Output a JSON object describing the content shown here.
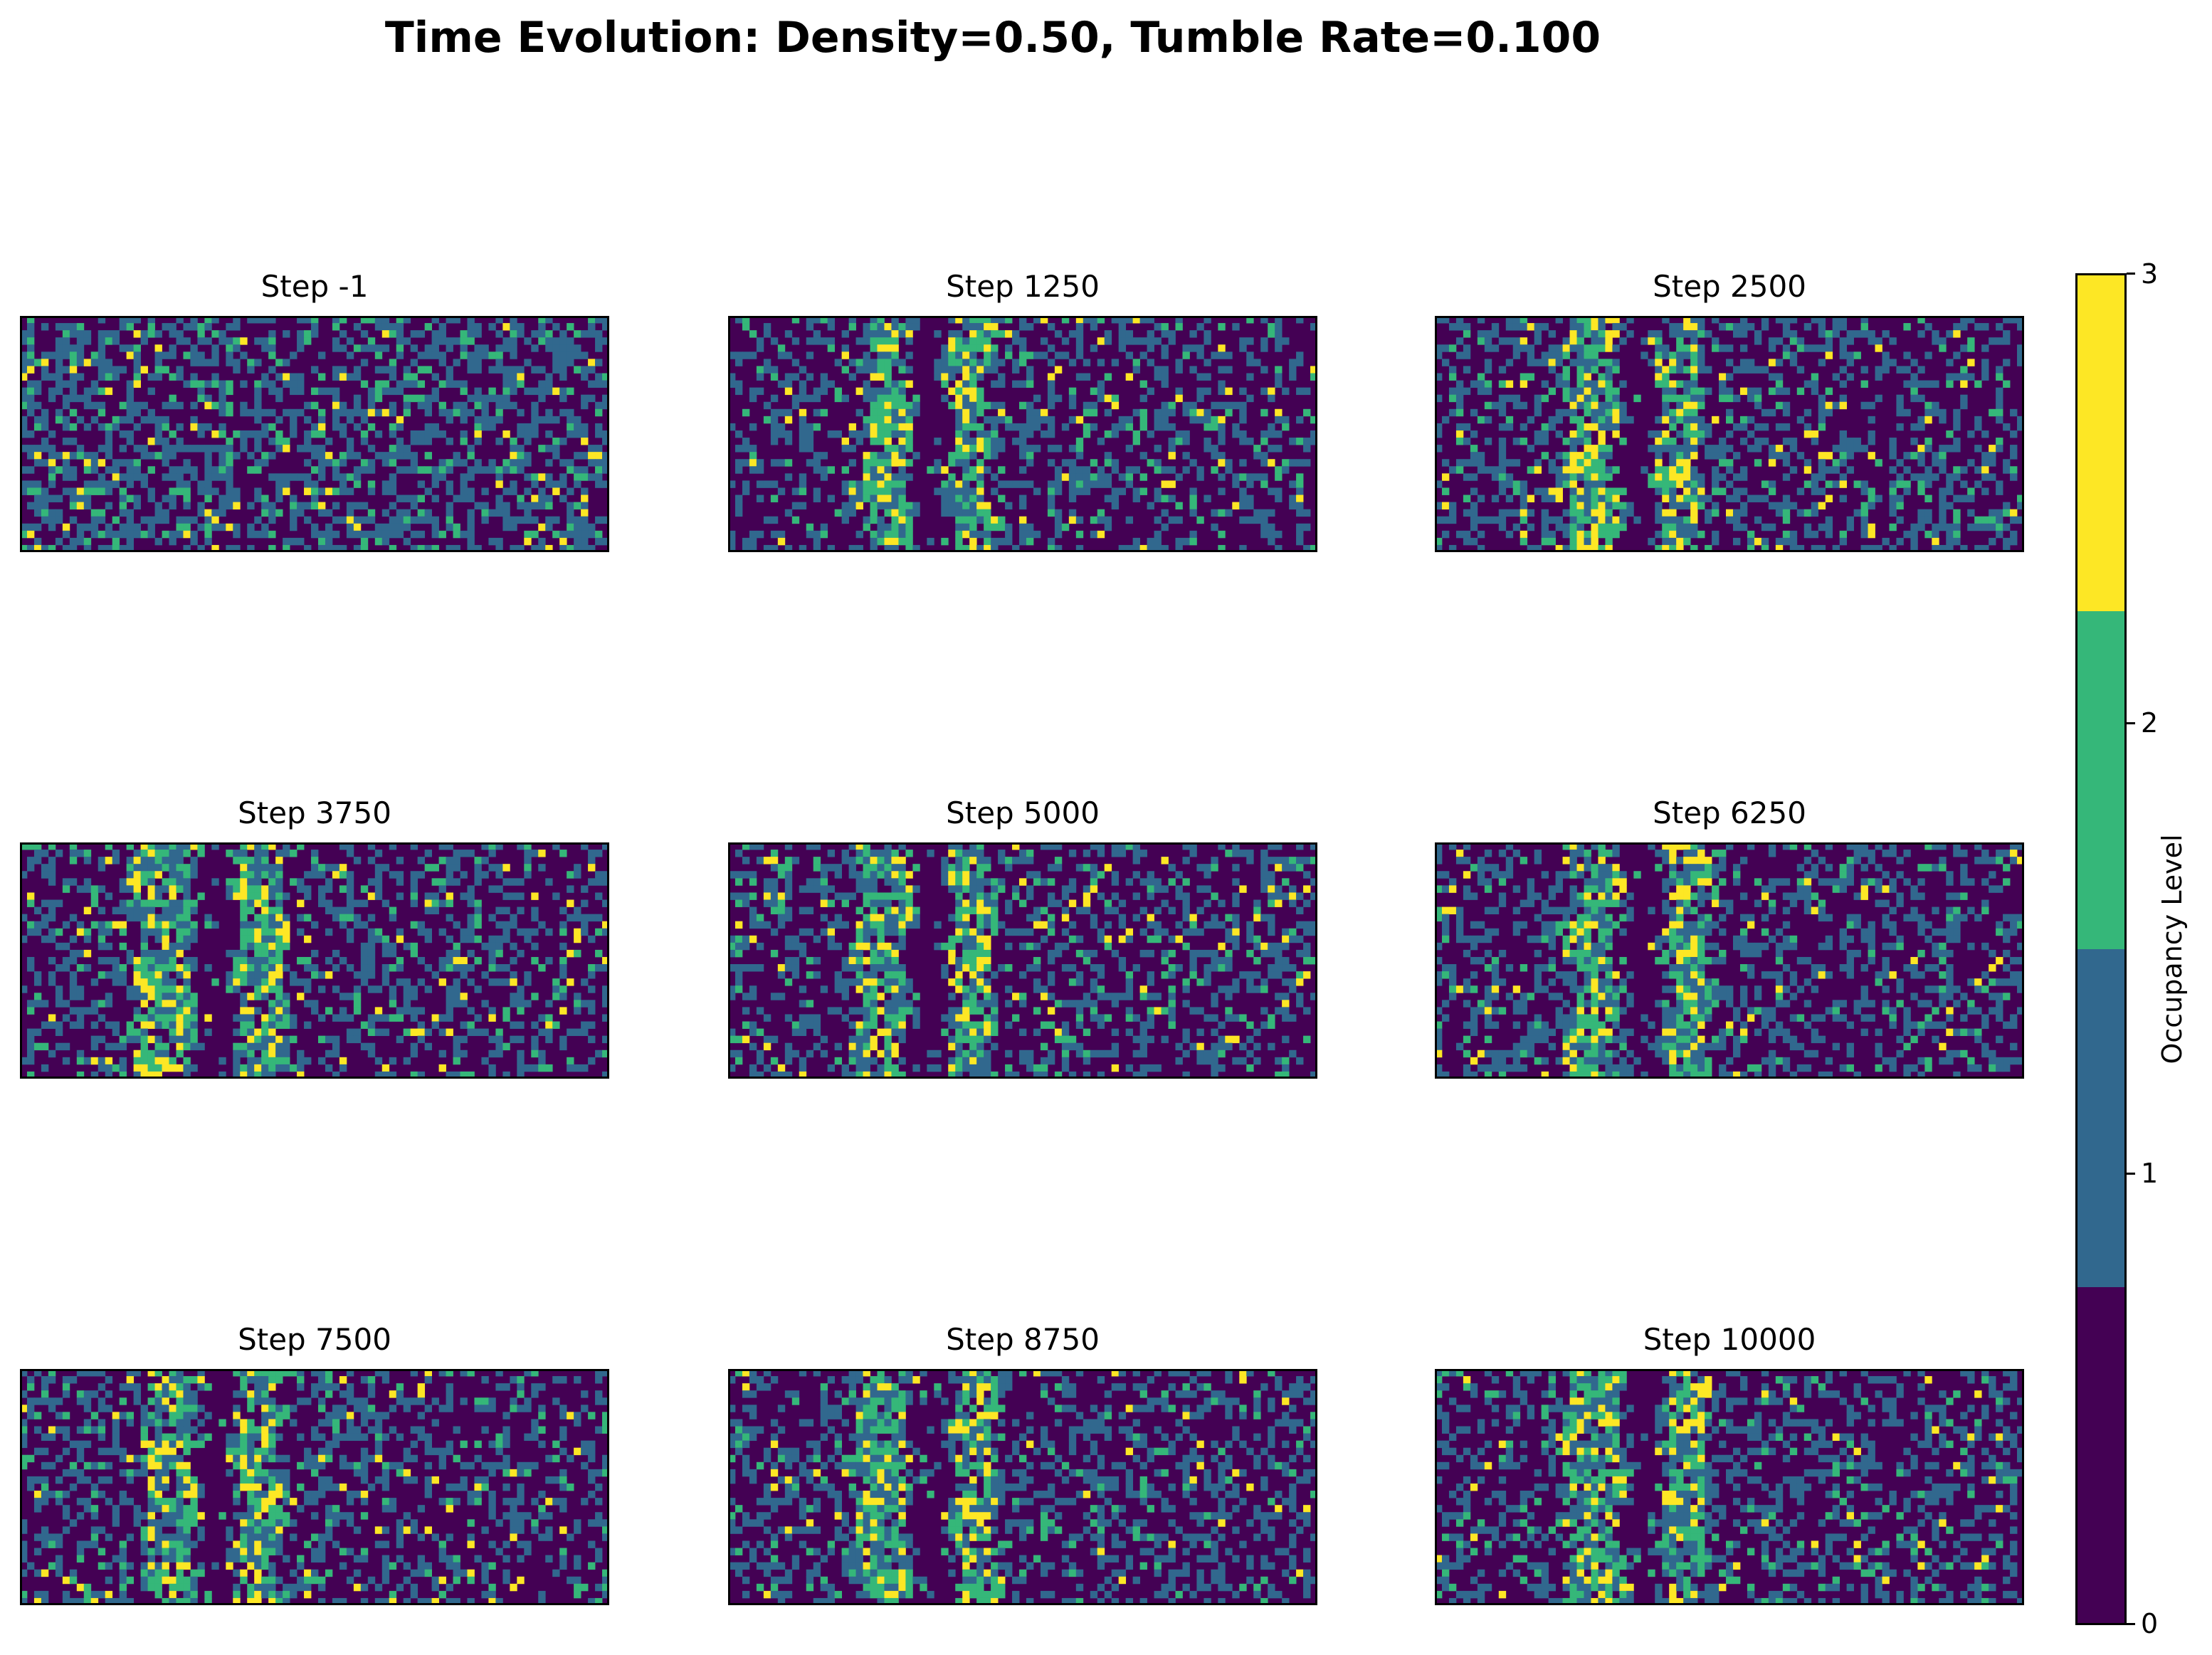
{
  "figure": {
    "suptitle": "Time Evolution: Density=0.50, Tumble Rate=0.100"
  },
  "chart_data": {
    "type": "heatmap",
    "title": "Time Evolution: Density=0.50, Tumble Rate=0.100",
    "grid": {
      "rows": 33,
      "cols": 83
    },
    "value_range": [
      0,
      3
    ],
    "axes_ticks_visible": false,
    "panels": [
      {
        "title": "Step -1",
        "step": -1,
        "band_centers": [],
        "band_widths": []
      },
      {
        "title": "Step 1250",
        "step": 1250,
        "band_centers": [
          22,
          33.5
        ],
        "band_widths": [
          6,
          6
        ]
      },
      {
        "title": "Step 2500",
        "step": 2500,
        "band_centers": [
          21.5,
          34
        ],
        "band_widths": [
          7,
          6
        ]
      },
      {
        "title": "Step 3750",
        "step": 3750,
        "band_centers": [
          20,
          33.5
        ],
        "band_widths": [
          8,
          7
        ]
      },
      {
        "title": "Step 5000",
        "step": 5000,
        "band_centers": [
          21,
          34
        ],
        "band_widths": [
          7,
          6
        ]
      },
      {
        "title": "Step 6250",
        "step": 6250,
        "band_centers": [
          21.5,
          35.5
        ],
        "band_widths": [
          7,
          6
        ]
      },
      {
        "title": "Step 7500",
        "step": 7500,
        "band_centers": [
          20.5,
          33.5
        ],
        "band_widths": [
          7,
          6
        ]
      },
      {
        "title": "Step 8750",
        "step": 8750,
        "band_centers": [
          21.5,
          34.5
        ],
        "band_widths": [
          7,
          6
        ]
      },
      {
        "title": "Step 10000",
        "step": 10000,
        "band_centers": [
          22,
          35
        ],
        "band_widths": [
          8,
          6
        ]
      }
    ],
    "colorbar": {
      "label": "Occupancy Level",
      "ticks": [
        "0",
        "1",
        "2",
        "3"
      ],
      "levels": [
        0,
        1,
        2,
        3
      ],
      "colors": [
        "#440154",
        "#31688e",
        "#35b779",
        "#fde725"
      ]
    }
  }
}
